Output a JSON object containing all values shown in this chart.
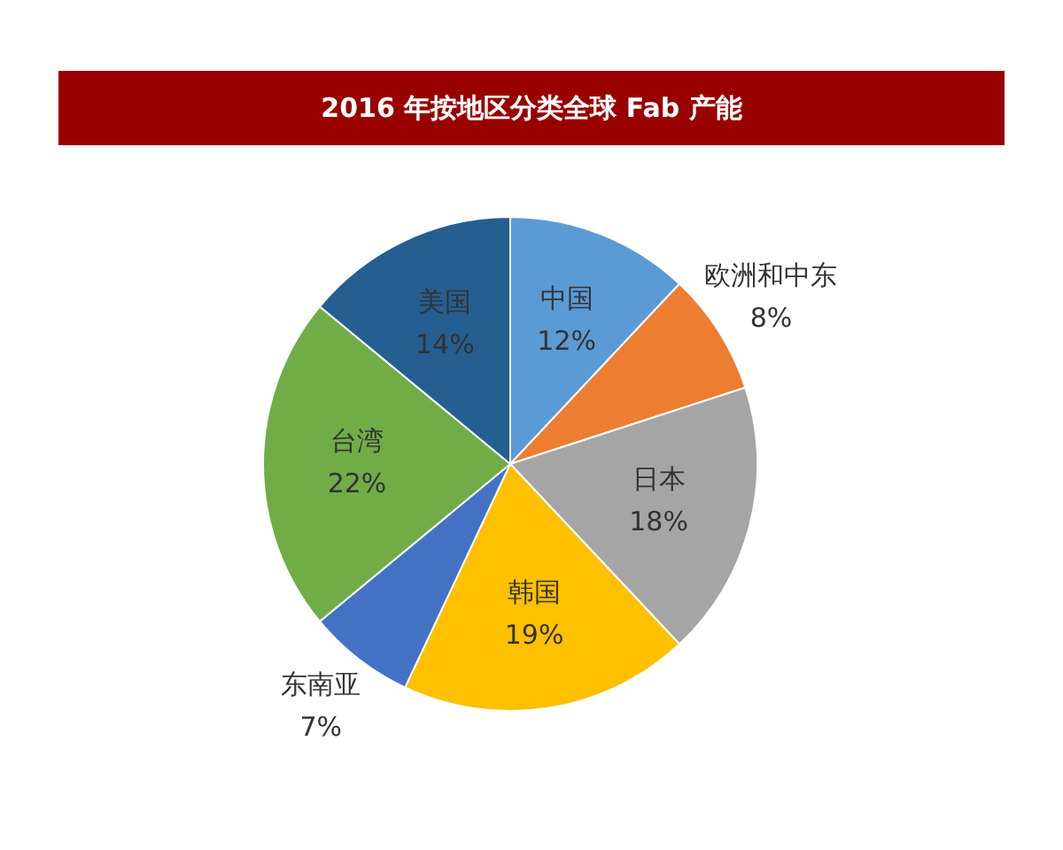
{
  "chart_data": {
    "type": "pie",
    "title": "2016 年按地区分类全球 Fab 产能",
    "categories": [
      "中国",
      "欧洲和中东",
      "日本",
      "韩国",
      "东南亚",
      "台湾",
      "美国"
    ],
    "values": [
      12,
      8,
      18,
      19,
      7,
      22,
      14
    ],
    "colors": [
      "#5b9bd5",
      "#ed7d31",
      "#a5a5a5",
      "#ffc000",
      "#4472c4",
      "#70ad47",
      "#255e91"
    ],
    "value_labels": [
      "12%",
      "8%",
      "18%",
      "19%",
      "7%",
      "22%",
      "14%"
    ]
  }
}
